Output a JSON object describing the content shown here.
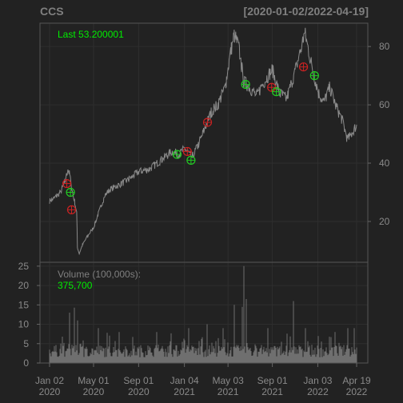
{
  "chart_data": {
    "type": "line",
    "symbol": "CCS",
    "date_range": "[2020-01-02/2022-04-19]",
    "last_label": "Last 53.200001",
    "price": {
      "ylim": [
        6,
        88
      ],
      "yticks": [
        20,
        40,
        60,
        80
      ],
      "series_color": "#8a8a8a",
      "anchors": [
        {
          "date": "2020-01-02",
          "close": 27
        },
        {
          "date": "2020-01-15",
          "close": 28
        },
        {
          "date": "2020-02-01",
          "close": 30
        },
        {
          "date": "2020-02-14",
          "close": 34
        },
        {
          "date": "2020-02-21",
          "close": 38
        },
        {
          "date": "2020-02-26",
          "close": 36
        },
        {
          "date": "2020-03-03",
          "close": 31
        },
        {
          "date": "2020-03-10",
          "close": 27
        },
        {
          "date": "2020-03-16",
          "close": 23
        },
        {
          "date": "2020-03-18",
          "close": 11
        },
        {
          "date": "2020-03-23",
          "close": 9
        },
        {
          "date": "2020-04-01",
          "close": 12
        },
        {
          "date": "2020-04-15",
          "close": 15
        },
        {
          "date": "2020-05-01",
          "close": 18
        },
        {
          "date": "2020-05-15",
          "close": 23
        },
        {
          "date": "2020-06-01",
          "close": 29
        },
        {
          "date": "2020-06-15",
          "close": 31
        },
        {
          "date": "2020-07-01",
          "close": 32
        },
        {
          "date": "2020-08-01",
          "close": 34
        },
        {
          "date": "2020-09-01",
          "close": 37
        },
        {
          "date": "2020-10-01",
          "close": 38
        },
        {
          "date": "2020-11-01",
          "close": 41
        },
        {
          "date": "2020-12-01",
          "close": 44
        },
        {
          "date": "2020-12-20",
          "close": 43
        },
        {
          "date": "2021-01-05",
          "close": 45
        },
        {
          "date": "2021-01-25",
          "close": 42
        },
        {
          "date": "2021-02-10",
          "close": 46
        },
        {
          "date": "2021-03-01",
          "close": 52
        },
        {
          "date": "2021-03-20",
          "close": 58
        },
        {
          "date": "2021-04-05",
          "close": 60
        },
        {
          "date": "2021-04-25",
          "close": 66
        },
        {
          "date": "2021-05-10",
          "close": 78
        },
        {
          "date": "2021-05-20",
          "close": 84
        },
        {
          "date": "2021-06-01",
          "close": 80
        },
        {
          "date": "2021-06-15",
          "close": 68
        },
        {
          "date": "2021-07-01",
          "close": 66
        },
        {
          "date": "2021-07-20",
          "close": 63
        },
        {
          "date": "2021-08-05",
          "close": 67
        },
        {
          "date": "2021-08-20",
          "close": 70
        },
        {
          "date": "2021-09-01",
          "close": 72
        },
        {
          "date": "2021-09-20",
          "close": 64
        },
        {
          "date": "2021-10-10",
          "close": 62
        },
        {
          "date": "2021-11-01",
          "close": 71
        },
        {
          "date": "2021-11-20",
          "close": 80
        },
        {
          "date": "2021-11-28",
          "close": 85
        },
        {
          "date": "2021-12-10",
          "close": 78
        },
        {
          "date": "2021-12-20",
          "close": 72
        },
        {
          "date": "2022-01-05",
          "close": 64
        },
        {
          "date": "2022-01-20",
          "close": 61
        },
        {
          "date": "2022-02-05",
          "close": 66
        },
        {
          "date": "2022-02-20",
          "close": 60
        },
        {
          "date": "2022-03-10",
          "close": 55
        },
        {
          "date": "2022-03-25",
          "close": 48
        },
        {
          "date": "2022-04-05",
          "close": 50
        },
        {
          "date": "2022-04-19",
          "close": 53.2
        }
      ]
    },
    "signals": [
      {
        "date": "2020-02-18",
        "price": 33,
        "type": "sell"
      },
      {
        "date": "2020-02-28",
        "price": 30,
        "type": "buy"
      },
      {
        "date": "2020-03-02",
        "price": 24,
        "type": "sell"
      },
      {
        "date": "2020-12-15",
        "price": 43,
        "type": "buy"
      },
      {
        "date": "2021-01-12",
        "price": 44,
        "type": "sell"
      },
      {
        "date": "2021-01-22",
        "price": 41,
        "type": "buy"
      },
      {
        "date": "2021-03-08",
        "price": 54,
        "type": "sell"
      },
      {
        "date": "2021-06-20",
        "price": 67,
        "type": "buy"
      },
      {
        "date": "2021-08-30",
        "price": 66,
        "type": "sell"
      },
      {
        "date": "2021-09-12",
        "price": 64.5,
        "type": "buy"
      },
      {
        "date": "2021-11-25",
        "price": 73,
        "type": "sell"
      },
      {
        "date": "2021-12-25",
        "price": 70,
        "type": "buy"
      }
    ],
    "volume": {
      "label": "Volume (100,000s):",
      "last_value": "375,700",
      "ylim": [
        0,
        26
      ],
      "yticks": [
        0,
        5,
        10,
        15,
        20,
        25
      ],
      "spikes": [
        {
          "date": "2020-02-25",
          "value": 13
        },
        {
          "date": "2020-03-10",
          "value": 14.3
        },
        {
          "date": "2020-03-18",
          "value": 11
        },
        {
          "date": "2020-05-15",
          "value": 9
        },
        {
          "date": "2020-07-10",
          "value": 8
        },
        {
          "date": "2020-10-20",
          "value": 8
        },
        {
          "date": "2021-01-15",
          "value": 9
        },
        {
          "date": "2021-03-08",
          "value": 10
        },
        {
          "date": "2021-04-20",
          "value": 9
        },
        {
          "date": "2021-05-20",
          "value": 15
        },
        {
          "date": "2021-06-10",
          "value": 14.5
        },
        {
          "date": "2021-06-16",
          "value": 25
        },
        {
          "date": "2021-06-21",
          "value": 16.5
        },
        {
          "date": "2021-08-20",
          "value": 9
        },
        {
          "date": "2021-10-28",
          "value": 16
        },
        {
          "date": "2021-12-01",
          "value": 9
        },
        {
          "date": "2022-02-20",
          "value": 8
        },
        {
          "date": "2022-03-25",
          "value": 9
        },
        {
          "date": "2022-04-13",
          "value": 9
        }
      ]
    },
    "x_ticks": [
      {
        "date": "2020-01-02",
        "label_top": "Jan 02",
        "label_bottom": "2020"
      },
      {
        "date": "2020-05-01",
        "label_top": "May 01",
        "label_bottom": "2020"
      },
      {
        "date": "2020-09-01",
        "label_top": "Sep 01",
        "label_bottom": "2020"
      },
      {
        "date": "2021-01-04",
        "label_top": "Jan 04",
        "label_bottom": "2021"
      },
      {
        "date": "2021-05-03",
        "label_top": "May 03",
        "label_bottom": "2021"
      },
      {
        "date": "2021-09-01",
        "label_top": "Sep 01",
        "label_bottom": "2021"
      },
      {
        "date": "2022-01-03",
        "label_top": "Jan 03",
        "label_bottom": "2022"
      },
      {
        "date": "2022-04-19",
        "label_top": "Apr 19",
        "label_bottom": "2022"
      }
    ],
    "colors": {
      "background": "#222222",
      "title": "#7f7f7f",
      "axis_text": "#8a8a8a",
      "grid": "#2e2e2e",
      "last_label": "#00ee00",
      "buy": "#22cc22",
      "sell": "#cc2222",
      "volume_bar": "#6f6f6f"
    },
    "legend": "top-left",
    "grid": true
  }
}
